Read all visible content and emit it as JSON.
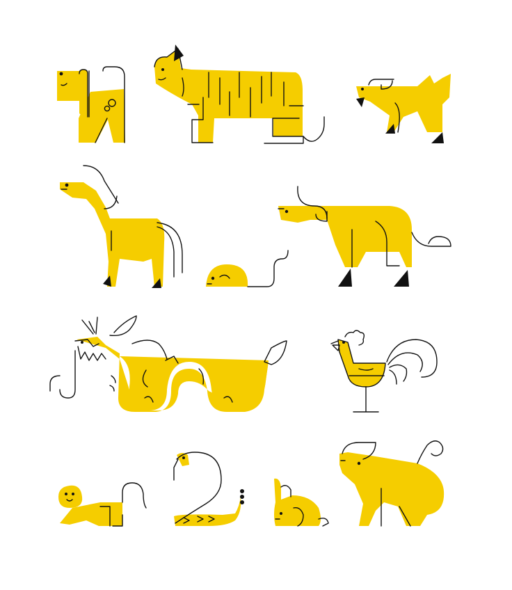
{
  "palette": {
    "yellow": "#F5CD00",
    "ink": "#111111",
    "background": "#FFFFFF"
  },
  "figures": [
    {
      "id": "dog",
      "icon": "dog-icon"
    },
    {
      "id": "tiger",
      "icon": "tiger-icon"
    },
    {
      "id": "goat",
      "icon": "goat-icon"
    },
    {
      "id": "horse",
      "icon": "horse-icon"
    },
    {
      "id": "rat",
      "icon": "rat-icon"
    },
    {
      "id": "ox",
      "icon": "ox-icon"
    },
    {
      "id": "dragon",
      "icon": "dragon-icon"
    },
    {
      "id": "rooster",
      "icon": "rooster-icon"
    },
    {
      "id": "monkey",
      "icon": "monkey-icon"
    },
    {
      "id": "snake",
      "icon": "snake-icon"
    },
    {
      "id": "rabbit",
      "icon": "rabbit-icon"
    },
    {
      "id": "pig",
      "icon": "pig-icon"
    }
  ]
}
